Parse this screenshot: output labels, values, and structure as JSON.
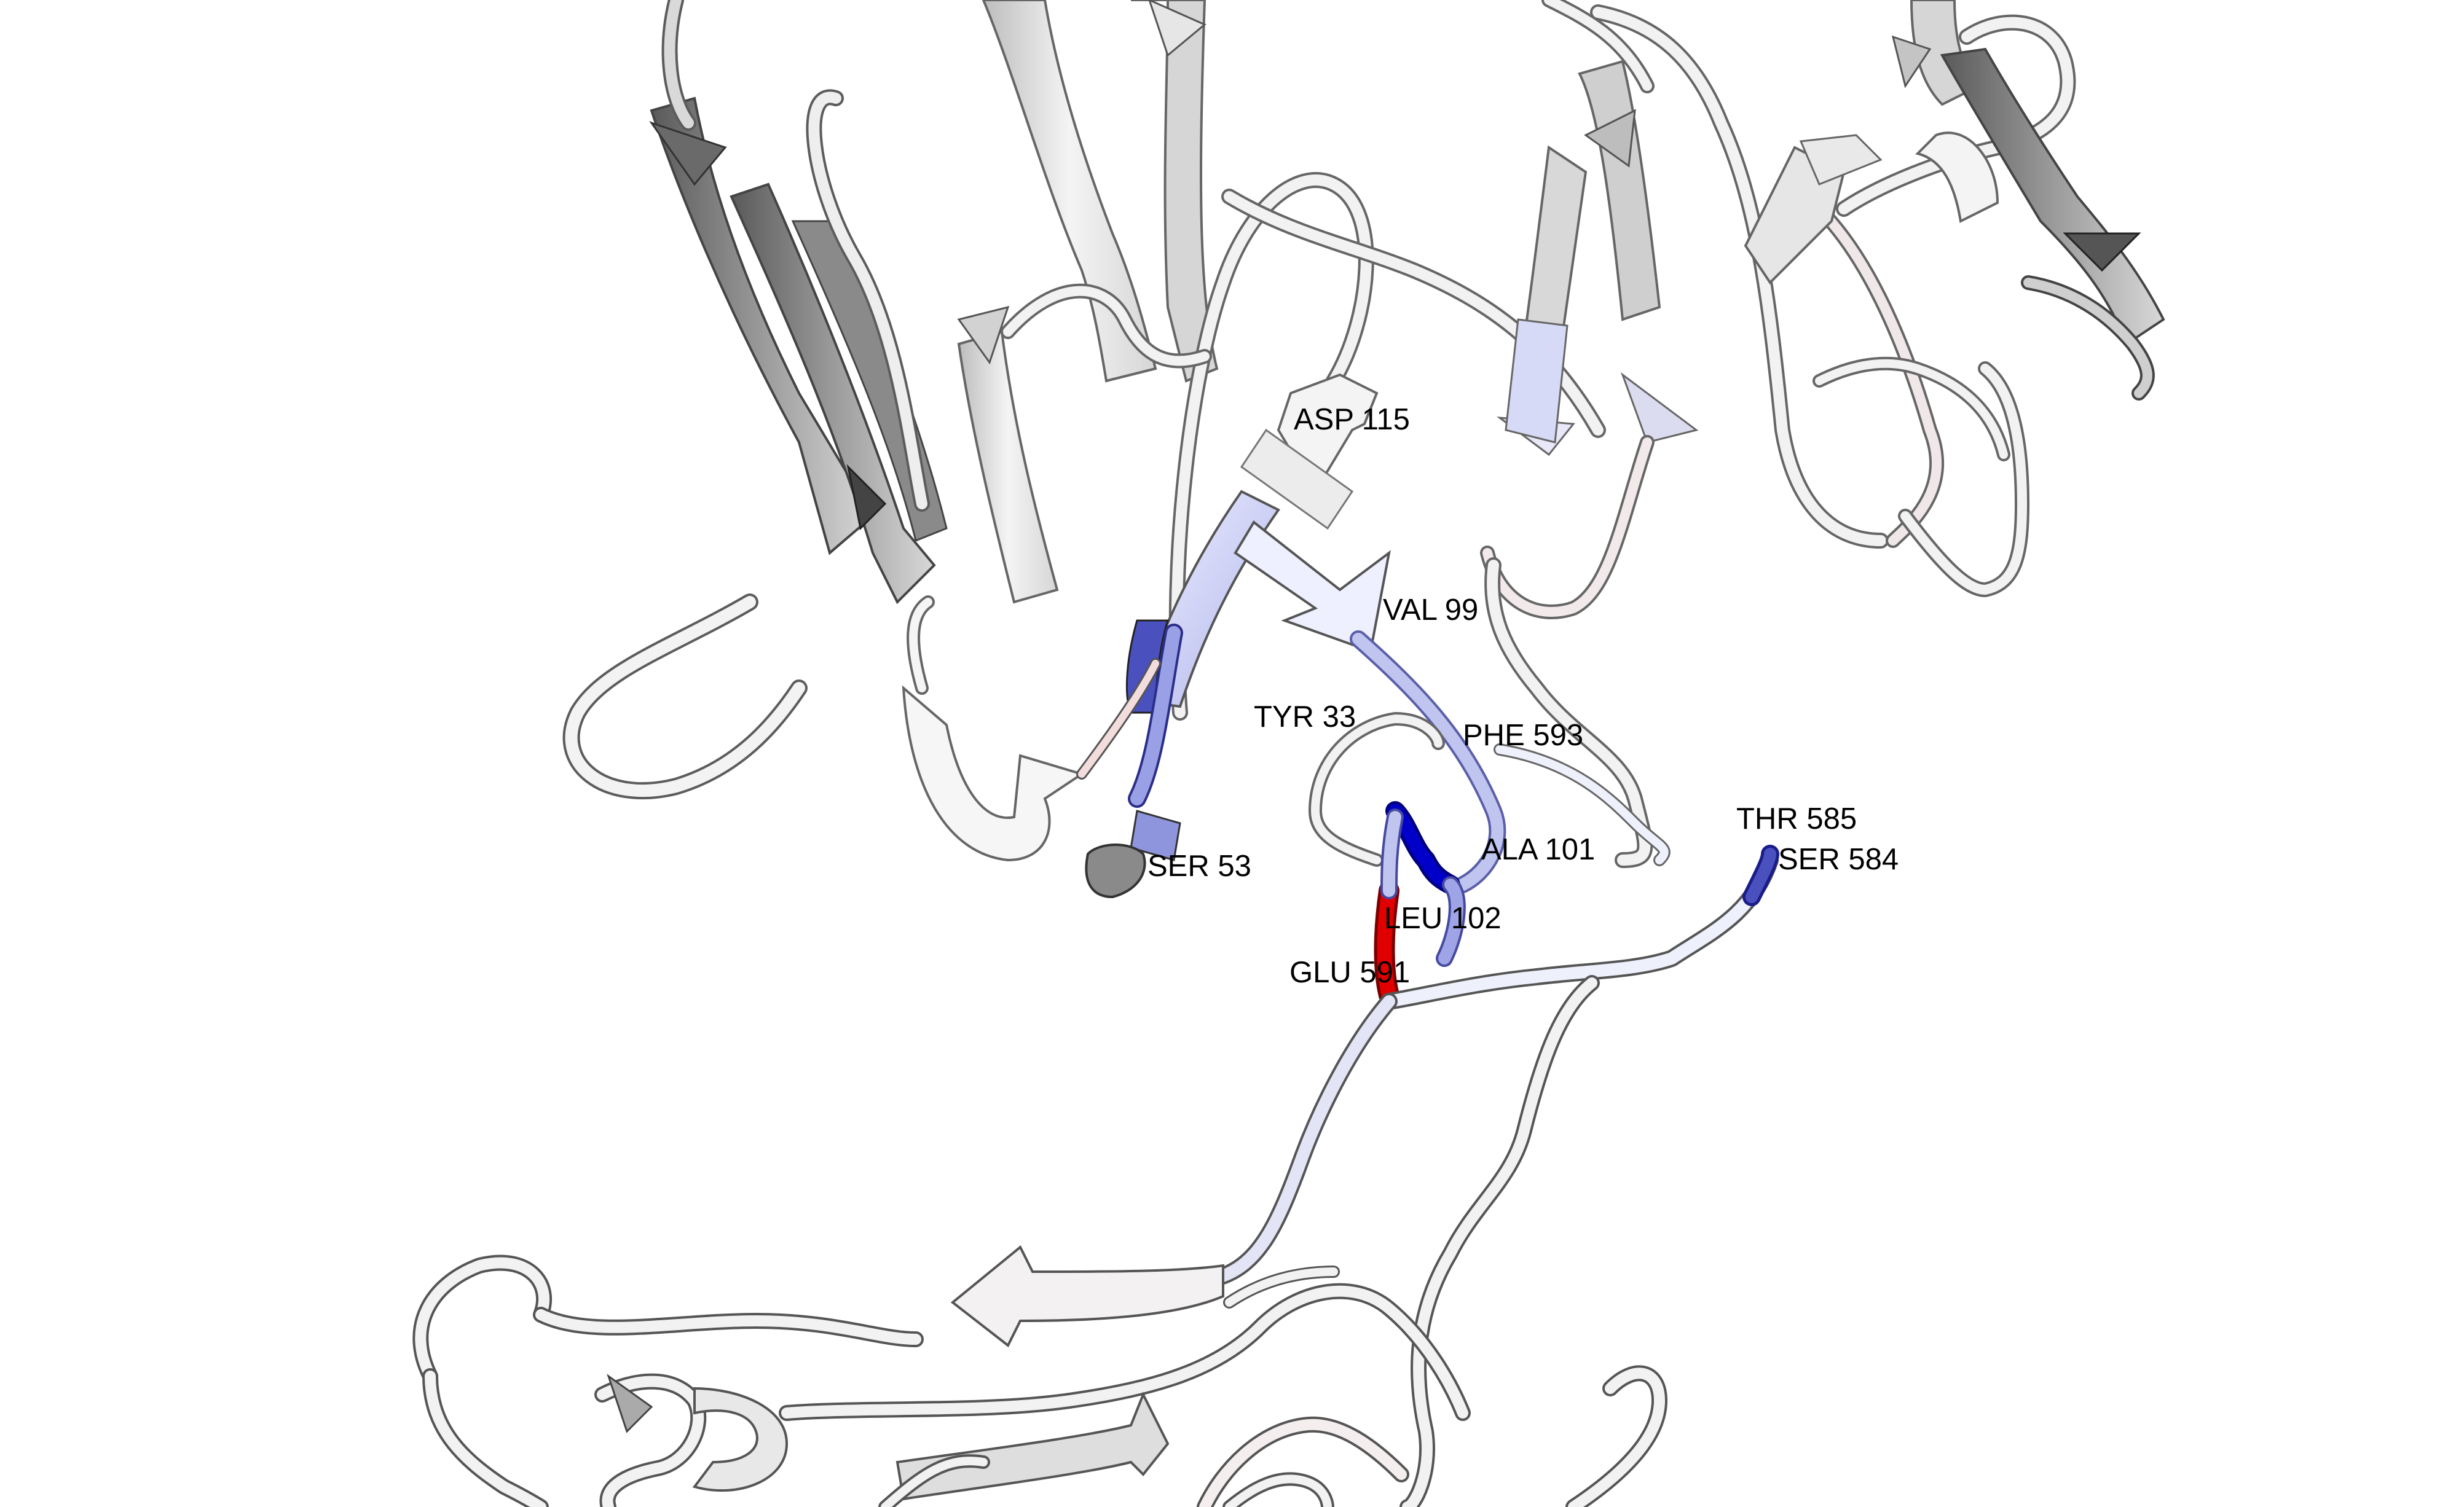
{
  "residue_labels": [
    {
      "id": "asp115",
      "text": "ASP 115"
    },
    {
      "id": "val99",
      "text": "VAL 99"
    },
    {
      "id": "tyr33",
      "text": "TYR 33"
    },
    {
      "id": "phe593",
      "text": "PHE 593"
    },
    {
      "id": "ala101",
      "text": "ALA 101"
    },
    {
      "id": "thr585",
      "text": "THR 585"
    },
    {
      "id": "ser584",
      "text": "SER 584"
    },
    {
      "id": "ser53",
      "text": "SER 53"
    },
    {
      "id": "leu102",
      "text": "LEU 102"
    },
    {
      "id": "glu591",
      "text": "GLU 591"
    }
  ],
  "colors": {
    "background": "#ffffff",
    "ribbon_light": "#f2f2f2",
    "ribbon_mid": "#cfcfcf",
    "ribbon_dark": "#7a7a7a",
    "ribbon_outline": "#5c5c5c",
    "lavender": "#c9cdf2",
    "blue_mid": "#8e95dd",
    "blue_dark": "#2a2fb8",
    "deep_blue": "#0000c8",
    "red": "#e00000",
    "pink": "#f3dcdc"
  }
}
